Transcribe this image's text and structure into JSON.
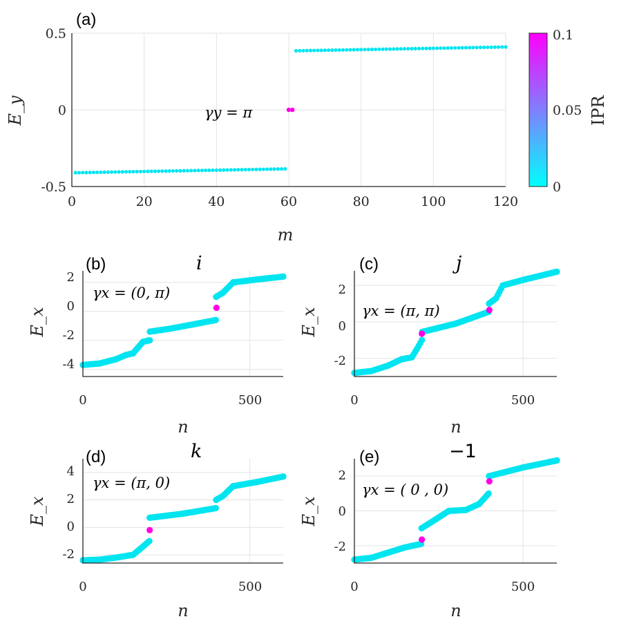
{
  "chart_data": [
    {
      "id": "a",
      "type": "scatter",
      "panel_label": "(a)",
      "xlabel": "m",
      "ylabel": "E_y",
      "xlim": [
        0,
        120
      ],
      "ylim": [
        -0.5,
        0.5
      ],
      "xticks": [
        0,
        20,
        40,
        60,
        80,
        100,
        120
      ],
      "xtick_labels": [
        "0",
        "20",
        "40",
        "60",
        "80",
        "100",
        "120"
      ],
      "yticks": [
        -0.5,
        0,
        0.5
      ],
      "ytick_labels": [
        "-0.5",
        "0",
        "0.5"
      ],
      "annotation": "γy = π",
      "series": [
        {
          "name": "lower band",
          "color": "#00e5f0",
          "x_range": [
            1,
            59
          ],
          "y_range": [
            -0.41,
            -0.385
          ]
        },
        {
          "name": "upper band",
          "color": "#00e5f0",
          "x_range": [
            62,
            120
          ],
          "y_range": [
            0.385,
            0.41
          ]
        },
        {
          "name": "edge states",
          "color": "#ff00e6",
          "x": [
            60,
            61
          ],
          "y": [
            0,
            0
          ]
        }
      ],
      "colorbar": {
        "label": "IPR",
        "range": [
          0,
          0.1
        ],
        "ticks": [
          0,
          0.05,
          0.1
        ],
        "tick_labels": [
          "0",
          "0.05",
          "0.1"
        ],
        "colors": [
          "#00ffff",
          "#ff00ff"
        ]
      }
    },
    {
      "id": "b",
      "type": "scatter",
      "panel_label": "(b)",
      "quaternion": "i",
      "annotation": "γx = (0, π)",
      "xlabel": "n",
      "ylabel": "E_x",
      "xlim": [
        0,
        600
      ],
      "ylim": [
        -4.5,
        2.8
      ],
      "xticks": [
        0,
        500
      ],
      "xtick_labels": [
        "0",
        "500"
      ],
      "yticks": [
        -4,
        -2,
        0,
        2
      ],
      "ytick_labels": [
        "-4",
        "-2",
        "0",
        "2"
      ],
      "curve": [
        [
          0,
          -3.7
        ],
        [
          50,
          -3.6
        ],
        [
          100,
          -3.3
        ],
        [
          130,
          -3.0
        ],
        [
          150,
          -2.9
        ],
        [
          165,
          -2.5
        ],
        [
          180,
          -2.1
        ],
        [
          200,
          -2.0
        ],
        [
          200.5,
          -1.4
        ],
        [
          260,
          -1.2
        ],
        [
          330,
          -0.9
        ],
        [
          398,
          -0.6
        ],
        [
          399,
          1.0
        ],
        [
          420,
          1.3
        ],
        [
          450,
          2.0
        ],
        [
          520,
          2.2
        ],
        [
          600,
          2.4
        ]
      ],
      "highlight": [
        [
          400,
          0.25
        ]
      ]
    },
    {
      "id": "c",
      "type": "scatter",
      "panel_label": "(c)",
      "quaternion": "j",
      "annotation": "γx = (π, π)",
      "xlabel": "n",
      "ylabel": "E_x",
      "xlim": [
        0,
        600
      ],
      "ylim": [
        -3,
        2.8
      ],
      "xticks": [
        0,
        500
      ],
      "xtick_labels": [
        "0",
        "500"
      ],
      "yticks": [
        -2,
        0,
        2
      ],
      "ytick_labels": [
        "-2",
        "0",
        "2"
      ],
      "curve": [
        [
          0,
          -2.8
        ],
        [
          50,
          -2.7
        ],
        [
          100,
          -2.4
        ],
        [
          140,
          -2.05
        ],
        [
          170,
          -1.95
        ],
        [
          185,
          -1.5
        ],
        [
          200,
          -1.0
        ],
        [
          201,
          -0.55
        ],
        [
          300,
          -0.1
        ],
        [
          398,
          0.55
        ],
        [
          399,
          1.0
        ],
        [
          420,
          1.3
        ],
        [
          440,
          2.0
        ],
        [
          500,
          2.3
        ],
        [
          600,
          2.75
        ]
      ],
      "highlight": [
        [
          200,
          -0.65
        ],
        [
          400,
          0.65
        ]
      ]
    },
    {
      "id": "d",
      "type": "scatter",
      "panel_label": "(d)",
      "quaternion": "k",
      "annotation": "γx = (π, 0)",
      "xlabel": "n",
      "ylabel": "E_x",
      "xlim": [
        0,
        600
      ],
      "ylim": [
        -2.6,
        5
      ],
      "xticks": [
        0,
        500
      ],
      "xtick_labels": [
        "0",
        "500"
      ],
      "yticks": [
        -2,
        0,
        2,
        4
      ],
      "ytick_labels": [
        "-2",
        "0",
        "2",
        "4"
      ],
      "curve": [
        [
          0,
          -2.4
        ],
        [
          50,
          -2.35
        ],
        [
          100,
          -2.2
        ],
        [
          150,
          -2.0
        ],
        [
          170,
          -1.6
        ],
        [
          199,
          -1.0
        ],
        [
          200,
          0.7
        ],
        [
          300,
          1.0
        ],
        [
          398,
          1.4
        ],
        [
          399,
          2.0
        ],
        [
          420,
          2.3
        ],
        [
          450,
          3.0
        ],
        [
          520,
          3.3
        ],
        [
          600,
          3.7
        ]
      ],
      "highlight": [
        [
          200,
          -0.2
        ]
      ]
    },
    {
      "id": "e",
      "type": "scatter",
      "panel_label": "(e)",
      "quaternion": "−1",
      "annotation": "γx = ( 0 , 0)",
      "xlabel": "n",
      "ylabel": "E_x",
      "xlim": [
        0,
        600
      ],
      "ylim": [
        -3,
        3
      ],
      "xticks": [
        0,
        500
      ],
      "xtick_labels": [
        "0",
        "500"
      ],
      "yticks": [
        -2,
        0,
        2
      ],
      "ytick_labels": [
        "-2",
        "0",
        "2"
      ],
      "curve": [
        [
          0,
          -2.8
        ],
        [
          50,
          -2.7
        ],
        [
          100,
          -2.4
        ],
        [
          150,
          -2.1
        ],
        [
          198,
          -1.9
        ],
        [
          199,
          -1.0
        ],
        [
          240,
          -0.5
        ],
        [
          280,
          0.0
        ],
        [
          330,
          0.05
        ],
        [
          370,
          0.4
        ],
        [
          398,
          1.0
        ],
        [
          399,
          2.0
        ],
        [
          500,
          2.5
        ],
        [
          600,
          2.9
        ]
      ],
      "highlight": [
        [
          200,
          -1.65
        ],
        [
          400,
          1.7
        ]
      ]
    }
  ]
}
